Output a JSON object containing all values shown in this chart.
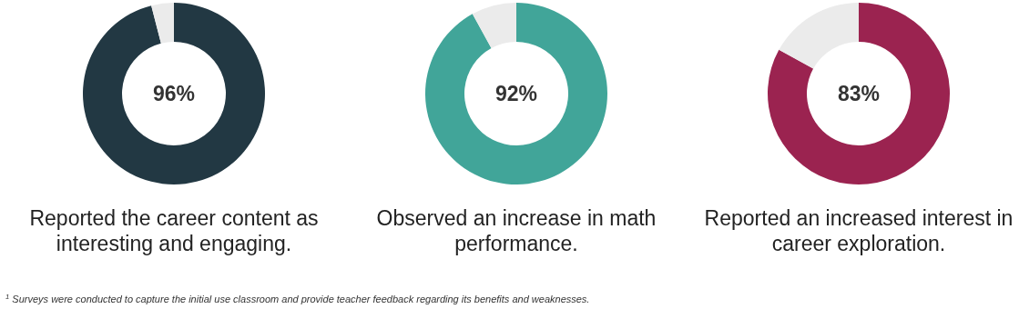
{
  "chart_data": [
    {
      "type": "donut",
      "title": "Reported the career content as interesting and engaging.",
      "categories": [
        null,
        null
      ],
      "values": [
        96,
        4
      ],
      "colors": [
        "#223843",
        "#ebebeb"
      ],
      "value_labels": [
        "96%",
        null
      ],
      "annotations": [
        "$^{1}$ Surveys were conducted to capture the initial use classroom and provide teacher feedback regarding its benefits and weaknesses."
      ]
    },
    {
      "type": "donut",
      "title": "Observed an increase in math performance.",
      "categories": [
        null,
        null
      ],
      "values": [
        92,
        8
      ],
      "colors": [
        "#41a599",
        "#ebebeb"
      ],
      "value_labels": [
        "92%",
        null
      ]
    },
    {
      "type": "donut",
      "title": "Reported an increased interest in career exploration.",
      "categories": [
        null,
        null
      ],
      "values": [
        83,
        17
      ],
      "colors": [
        "#9b2350",
        "#ebebeb"
      ],
      "value_labels": [
        "83%",
        null
      ]
    }
  ]
}
